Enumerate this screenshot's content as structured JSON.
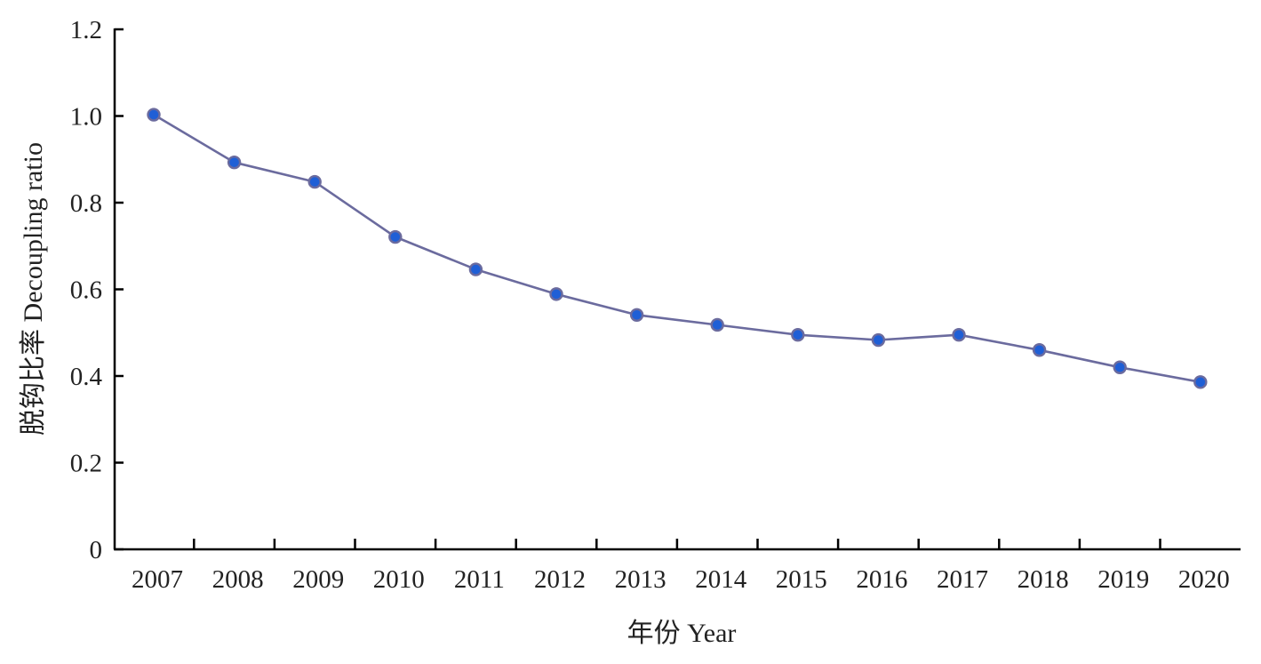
{
  "chart_data": {
    "type": "line",
    "title": "",
    "xlabel": "年份 Year",
    "ylabel": "脱钩比率 Decoupling ratio",
    "categories": [
      "2007",
      "2008",
      "2009",
      "2010",
      "2011",
      "2012",
      "2013",
      "2014",
      "2015",
      "2016",
      "2017",
      "2018",
      "2019",
      "2020"
    ],
    "series": [
      {
        "values": [
          1.003,
          0.893,
          0.848,
          0.721,
          0.646,
          0.589,
          0.541,
          0.518,
          0.495,
          0.483,
          0.495,
          0.46,
          0.42,
          0.386
        ]
      }
    ],
    "ylim": [
      0,
      1.2
    ],
    "yticks": [
      0,
      0.2,
      0.4,
      0.6,
      0.8,
      1.0,
      1.2
    ],
    "ytick_labels": [
      "0",
      "0.2",
      "0.4",
      "0.6",
      "0.8",
      "1.0",
      "1.2"
    ],
    "grid": false,
    "legend": "none",
    "colors": {
      "line": "#6b6b9e",
      "marker_fill": "#1f5fd6",
      "marker_edge": "#6b6b9e",
      "axis": "#000000"
    }
  }
}
